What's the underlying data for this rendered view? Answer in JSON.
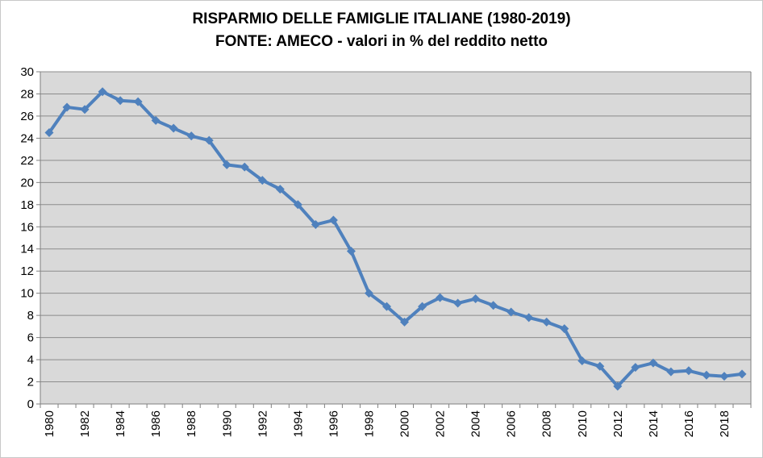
{
  "chart_data": {
    "type": "line",
    "title": "RISPARMIO DELLE FAMIGLIE ITALIANE (1980-2019)",
    "subtitle": "FONTE: AMECO - valori in % del reddito netto",
    "xlabel": "",
    "ylabel": "",
    "ylim": [
      0,
      30
    ],
    "yticks": [
      0,
      2,
      4,
      6,
      8,
      10,
      12,
      14,
      16,
      18,
      20,
      22,
      24,
      26,
      28,
      30
    ],
    "xticks": [
      "1980",
      "1982",
      "1984",
      "1986",
      "1988",
      "1990",
      "1992",
      "1994",
      "1996",
      "1998",
      "2000",
      "2002",
      "2004",
      "2006",
      "2008",
      "2010",
      "2012",
      "2014",
      "2016",
      "2018"
    ],
    "grid": true,
    "legend": "none",
    "x": [
      1980,
      1981,
      1982,
      1983,
      1984,
      1985,
      1986,
      1987,
      1988,
      1989,
      1990,
      1991,
      1992,
      1993,
      1994,
      1995,
      1996,
      1997,
      1998,
      1999,
      2000,
      2001,
      2002,
      2003,
      2004,
      2005,
      2006,
      2007,
      2008,
      2009,
      2010,
      2011,
      2012,
      2013,
      2014,
      2015,
      2016,
      2017,
      2018,
      2019
    ],
    "series": [
      {
        "values": [
          24.5,
          26.8,
          26.6,
          28.2,
          27.4,
          27.3,
          25.6,
          24.9,
          24.2,
          23.8,
          21.6,
          21.4,
          20.2,
          19.4,
          18.0,
          16.2,
          16.6,
          13.8,
          10.0,
          8.8,
          7.4,
          8.8,
          9.6,
          9.1,
          9.5,
          8.9,
          8.3,
          7.8,
          7.4,
          6.8,
          3.9,
          3.4,
          1.6,
          3.3,
          3.7,
          2.9,
          3.0,
          2.6,
          2.5,
          2.7
        ],
        "color": "#4f81bd"
      }
    ],
    "plot_background": "#d9d9d9",
    "grid_color": "#8c8c8c"
  }
}
